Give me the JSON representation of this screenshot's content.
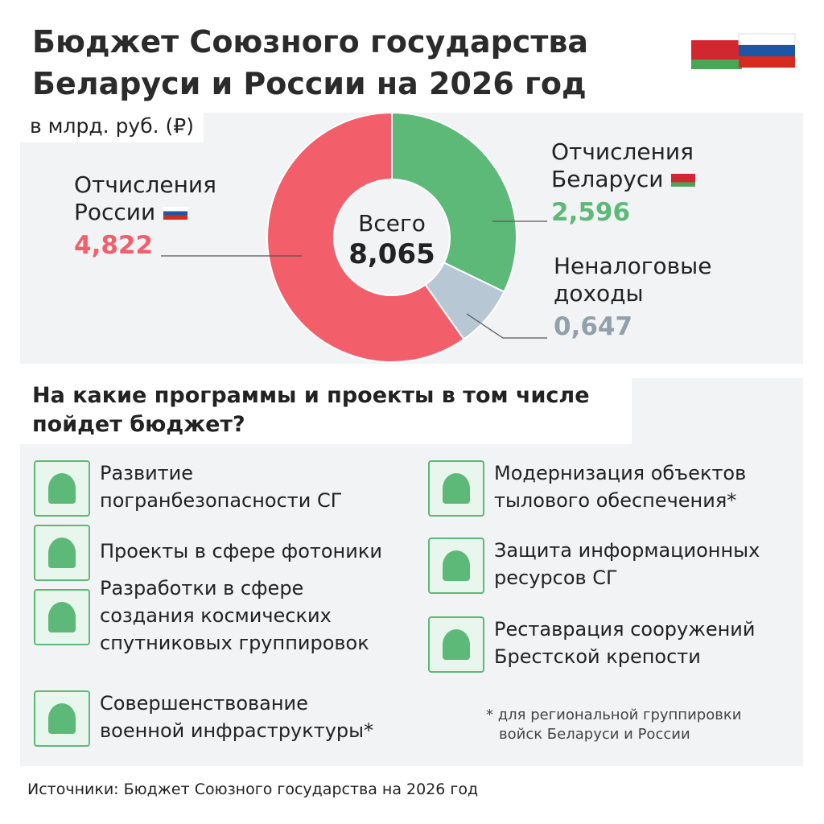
{
  "chart_data": {
    "type": "donut",
    "title": "Бюджет Союзного государства Беларуси и России на 2026 год",
    "subtitle": "в млрд. руб. (₽)",
    "center_label": "Всего",
    "total": {
      "value": 8.065,
      "label": "8,065"
    },
    "categories": [
      "Отчисления Беларуси",
      "Неналоговые доходы",
      "Отчисления России"
    ],
    "values": [
      2.596,
      0.647,
      4.822
    ],
    "value_labels": [
      "2,596",
      "0,647",
      "4,822"
    ],
    "colors": [
      "#5db978",
      "#b7c8d4",
      "#f25f6b"
    ]
  },
  "projects": {
    "title": "На какие программы и проекты в том числе пойдет бюджет?",
    "items": [
      [
        "Развитие",
        "погранбезопасности СГ"
      ],
      [
        "Проекты в сфере фотоники"
      ],
      [
        "Разработки в сфере",
        "создания космических",
        "спутниковых группировок"
      ],
      [
        "Совершенствование",
        "военной инфраструктуры*"
      ],
      [
        "Модернизация объектов",
        "тылового обеспечения*"
      ],
      [
        "Защита информационных",
        "ресурсов СГ"
      ],
      [
        "Реставрация сооружений",
        "Брестской крепости"
      ]
    ]
  },
  "footnote": [
    "* для региональной группировки",
    "войск Беларуси и России"
  ],
  "source": "Источники: Бюджет Союзного государства на 2026 год"
}
